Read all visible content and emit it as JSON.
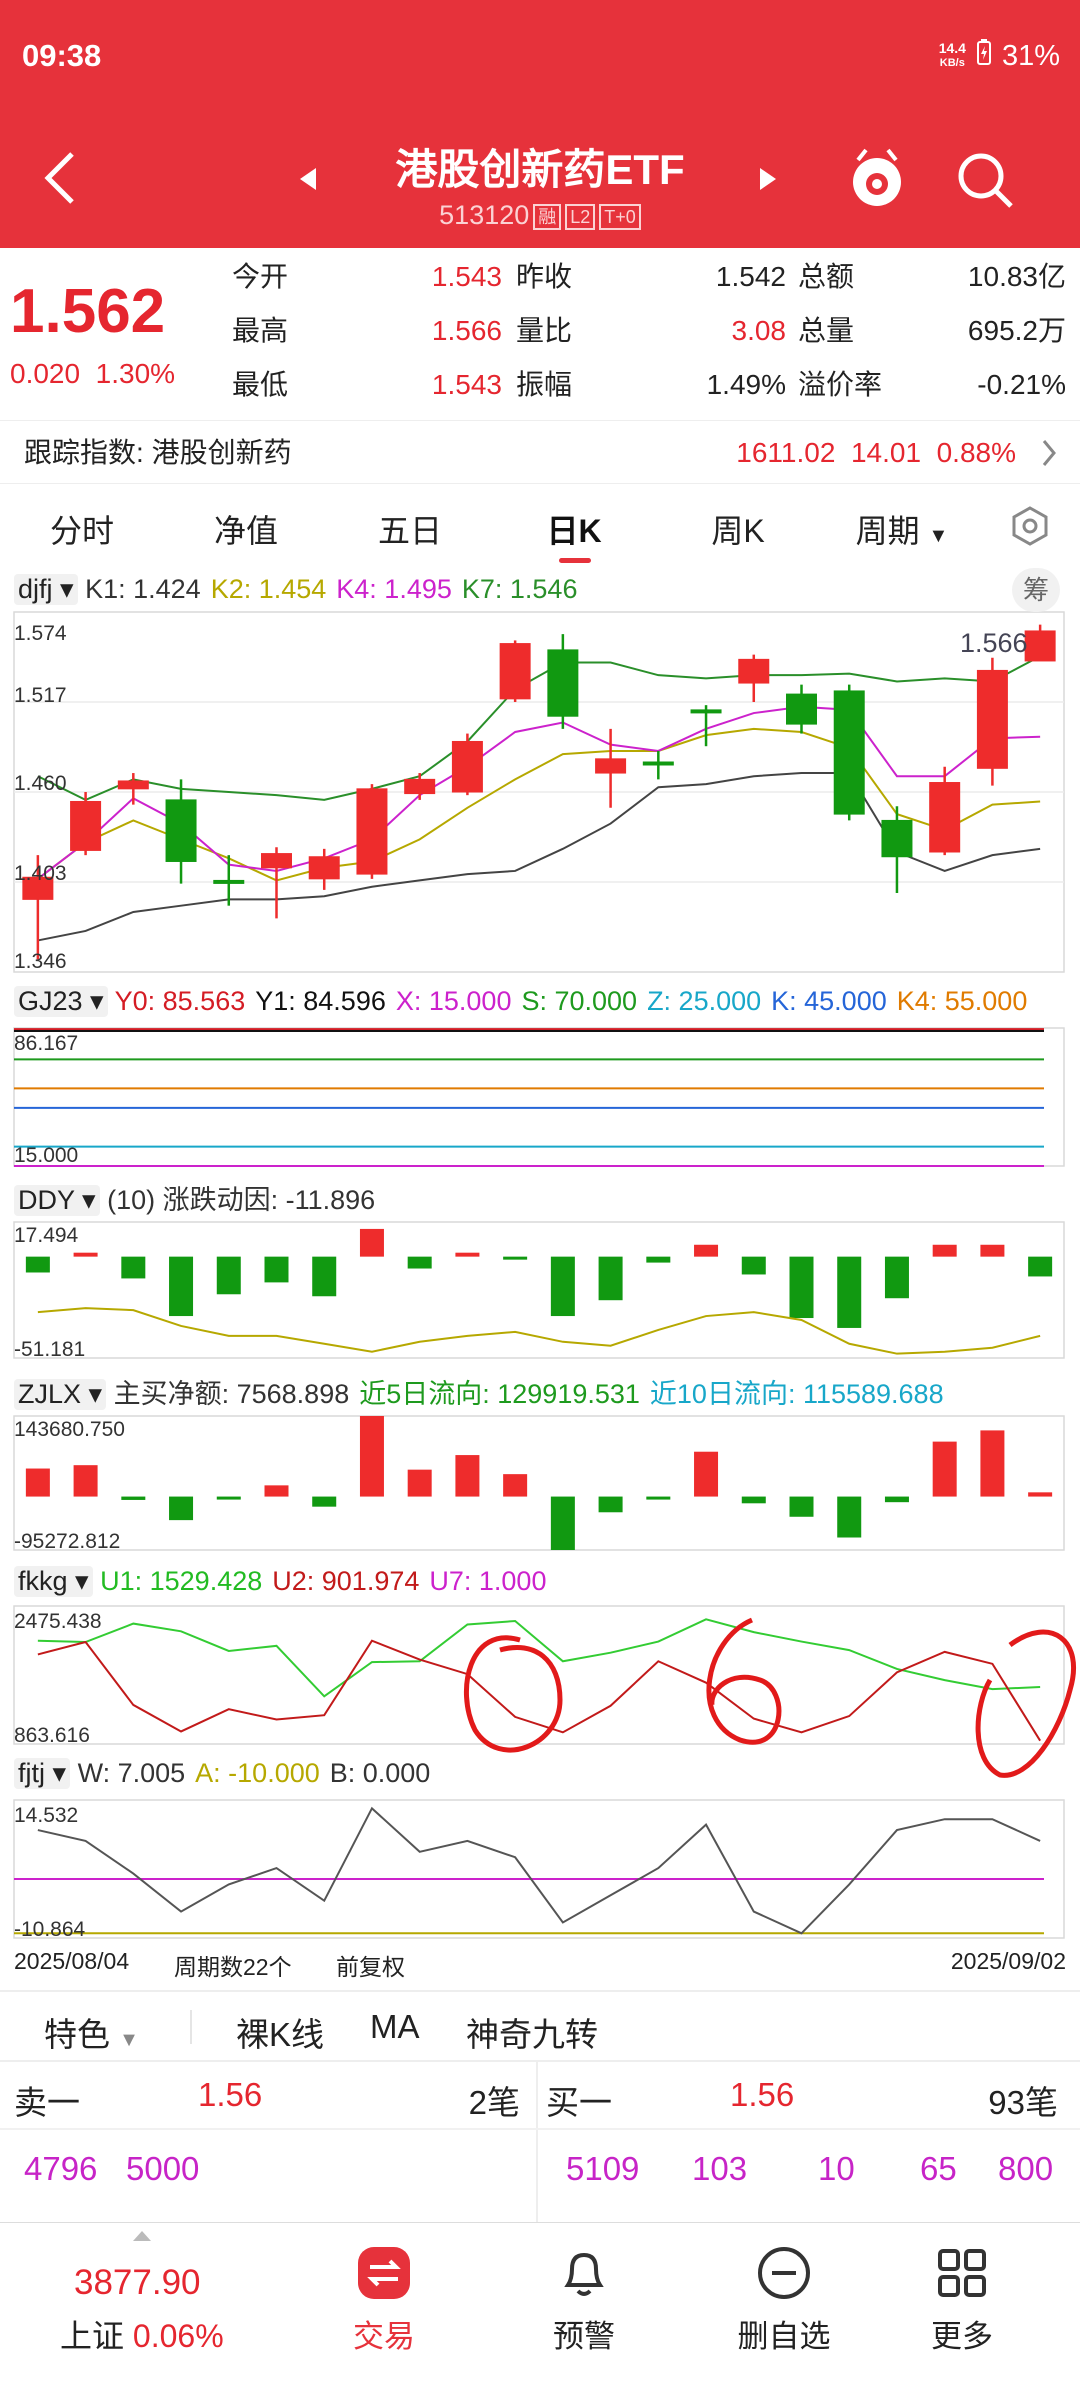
{
  "status": {
    "time": "09:38",
    "net_speed_value": "14.4",
    "net_speed_unit": "KB/s",
    "battery": "31%"
  },
  "header": {
    "title": "港股创新药ETF",
    "code": "513120",
    "tags": [
      "融",
      "L2",
      "T+0"
    ]
  },
  "quote": {
    "price": "1.562",
    "change": "0.020",
    "change_pct": "1.30%",
    "col1": [
      {
        "label": "今开",
        "value": "1.543"
      },
      {
        "label": "最高",
        "value": "1.566"
      },
      {
        "label": "最低",
        "value": "1.543"
      }
    ],
    "col2": [
      {
        "label": "昨收",
        "value": "1.542"
      },
      {
        "label": "量比",
        "value": "3.08"
      },
      {
        "label": "振幅",
        "value": "1.49%"
      }
    ],
    "col3": [
      {
        "label": "总额",
        "value": "10.83亿"
      },
      {
        "label": "总量",
        "value": "695.2万"
      },
      {
        "label": "溢价率",
        "value": "-0.21%"
      }
    ]
  },
  "track": {
    "label": "跟踪指数:",
    "index": "港股创新药",
    "point": "1611.02",
    "chg": "14.01",
    "pct": "0.88%"
  },
  "tabs": [
    "分时",
    "净值",
    "五日",
    "日K",
    "周K",
    "周期"
  ],
  "active_tab": "日K",
  "panels": {
    "djfj": {
      "name": "djfj",
      "vals": [
        {
          "t": "K1: 1.424",
          "c": "#333"
        },
        {
          "t": "K2: 1.454",
          "c": "#b6a800"
        },
        {
          "t": "K4: 1.495",
          "c": "#cc22cc"
        },
        {
          "t": "K7: 1.546",
          "c": "#2a8f2a"
        }
      ],
      "badge": "筹",
      "last_label": "1.566",
      "y_ticks": [
        "1.574",
        "1.517",
        "1.460",
        "1.403",
        "1.346"
      ]
    },
    "gj23": {
      "name": "GJ23",
      "vals": [
        {
          "t": "Y0: 85.563",
          "c": "#d41c24"
        },
        {
          "t": "Y1: 84.596",
          "c": "#111"
        },
        {
          "t": "X: 15.000",
          "c": "#cc22cc"
        },
        {
          "t": "S: 70.000",
          "c": "#1e9a1e"
        },
        {
          "t": "Z: 25.000",
          "c": "#18a7c9"
        },
        {
          "t": "K: 45.000",
          "c": "#2565d8"
        },
        {
          "t": "K4: 55.000",
          "c": "#e07b00"
        }
      ],
      "y_ticks": [
        "86.167",
        "15.000"
      ]
    },
    "ddy": {
      "name": "DDY",
      "vals": [
        {
          "t": "(10) 涨跌动因: -11.896",
          "c": "#333"
        }
      ],
      "y_ticks": [
        "17.494",
        "-51.181"
      ]
    },
    "zjlx": {
      "name": "ZJLX",
      "vals": [
        {
          "t": "主买净额: 7568.898",
          "c": "#333"
        },
        {
          "t": "近5日流向: 129919.531",
          "c": "#1e9a1e"
        },
        {
          "t": "近10日流向: 115589.688",
          "c": "#18a7c9"
        }
      ],
      "y_ticks": [
        "143680.750",
        "-95272.812"
      ]
    },
    "fkkg": {
      "name": "fkkg",
      "vals": [
        {
          "t": "U1: 1529.428",
          "c": "#22bb22"
        },
        {
          "t": "U2: 901.974",
          "c": "#c21a1a"
        },
        {
          "t": "U7: 1.000",
          "c": "#cc22cc"
        }
      ],
      "y_ticks": [
        "2475.438",
        "863.616"
      ]
    },
    "fjtj": {
      "name": "fjtj",
      "vals": [
        {
          "t": "W: 7.005",
          "c": "#333"
        },
        {
          "t": "A: -10.000",
          "c": "#b6a800"
        },
        {
          "t": "B: 0.000",
          "c": "#333"
        }
      ],
      "y_ticks": [
        "14.532",
        "-10.864"
      ]
    }
  },
  "chart_data": {
    "type": "candlestick",
    "dates": {
      "start": "2025/08/04",
      "end": "2025/09/02"
    },
    "period_count": "周期数22个",
    "adjust": "前复权",
    "candles": [
      {
        "o": 1.392,
        "c": 1.406,
        "h": 1.42,
        "l": 1.354
      },
      {
        "o": 1.423,
        "c": 1.454,
        "h": 1.46,
        "l": 1.42
      },
      {
        "o": 1.462,
        "c": 1.467,
        "h": 1.472,
        "l": 1.452
      },
      {
        "o": 1.455,
        "c": 1.416,
        "h": 1.468,
        "l": 1.402
      },
      {
        "o": 1.404,
        "c": 1.403,
        "h": 1.42,
        "l": 1.388
      },
      {
        "o": 1.412,
        "c": 1.421,
        "h": 1.425,
        "l": 1.38
      },
      {
        "o": 1.405,
        "c": 1.419,
        "h": 1.424,
        "l": 1.398
      },
      {
        "o": 1.408,
        "c": 1.462,
        "h": 1.465,
        "l": 1.405
      },
      {
        "o": 1.459,
        "c": 1.468,
        "h": 1.472,
        "l": 1.455
      },
      {
        "o": 1.46,
        "c": 1.492,
        "h": 1.497,
        "l": 1.458
      },
      {
        "o": 1.519,
        "c": 1.554,
        "h": 1.556,
        "l": 1.517
      },
      {
        "o": 1.55,
        "c": 1.508,
        "h": 1.56,
        "l": 1.5
      },
      {
        "o": 1.472,
        "c": 1.481,
        "h": 1.5,
        "l": 1.45
      },
      {
        "o": 1.479,
        "c": 1.478,
        "h": 1.486,
        "l": 1.468
      },
      {
        "o": 1.512,
        "c": 1.511,
        "h": 1.515,
        "l": 1.489
      },
      {
        "o": 1.529,
        "c": 1.544,
        "h": 1.547,
        "l": 1.517
      },
      {
        "o": 1.522,
        "c": 1.503,
        "h": 1.528,
        "l": 1.497
      },
      {
        "o": 1.524,
        "c": 1.446,
        "h": 1.528,
        "l": 1.442
      },
      {
        "o": 1.442,
        "c": 1.419,
        "h": 1.451,
        "l": 1.396
      },
      {
        "o": 1.422,
        "c": 1.466,
        "h": 1.476,
        "l": 1.42
      },
      {
        "o": 1.475,
        "c": 1.537,
        "h": 1.545,
        "l": 1.464
      },
      {
        "o": 1.543,
        "c": 1.562,
        "h": 1.566,
        "l": 1.543
      }
    ],
    "ma_gray": [
      1.366,
      1.372,
      1.384,
      1.388,
      1.392,
      1.392,
      1.394,
      1.4,
      1.404,
      1.408,
      1.41,
      1.424,
      1.44,
      1.463,
      1.465,
      1.47,
      1.472,
      1.472,
      1.422,
      1.41,
      1.42,
      1.424
    ],
    "ma_yellow": [
      1.405,
      1.428,
      1.442,
      1.43,
      1.418,
      1.404,
      1.412,
      1.416,
      1.43,
      1.45,
      1.468,
      1.484,
      1.486,
      1.486,
      1.496,
      1.5,
      1.498,
      1.488,
      1.446,
      1.436,
      1.452,
      1.454
    ],
    "ma_magenta": [
      1.405,
      1.428,
      1.456,
      1.44,
      1.414,
      1.41,
      1.418,
      1.43,
      1.458,
      1.476,
      1.498,
      1.504,
      1.49,
      1.486,
      1.5,
      1.51,
      1.514,
      1.512,
      1.47,
      1.47,
      1.494,
      1.495
    ],
    "ma_green": [
      1.47,
      1.455,
      1.468,
      1.462,
      1.46,
      1.458,
      1.455,
      1.462,
      1.47,
      1.492,
      1.525,
      1.542,
      1.542,
      1.534,
      1.532,
      1.534,
      1.534,
      1.535,
      1.53,
      1.532,
      1.53,
      1.546
    ],
    "ddy_bars": [
      -8,
      2,
      -11,
      -30,
      -19,
      -13,
      -20,
      14,
      -6,
      2,
      -1,
      -30,
      -22,
      -3,
      6,
      -9,
      -31,
      -36,
      -21,
      6,
      6,
      -10
    ],
    "ddy_line": [
      -28,
      -26,
      -27,
      -35,
      -40,
      -40,
      -44,
      -48,
      -43,
      -40,
      -38,
      -43,
      -45,
      -37,
      -30,
      -28,
      -32,
      -44,
      -49,
      -48,
      -46,
      -40
    ],
    "zjlx_bars": [
      50000,
      56000,
      -6000,
      -42000,
      -2000,
      20000,
      -18000,
      143680,
      48000,
      74000,
      40000,
      -95272,
      -28000,
      -3000,
      80000,
      -12000,
      -36000,
      -73000,
      -10000,
      98000,
      118000,
      7568
    ],
    "fkkg_u1": [
      2070,
      2055,
      2270,
      2180,
      1950,
      2010,
      1420,
      1820,
      1830,
      2260,
      2300,
      1830,
      1930,
      2060,
      2320,
      2170,
      2060,
      1960,
      1740,
      1610,
      1505,
      1529
    ],
    "fkkg_u2": [
      1910,
      2055,
      1320,
      1010,
      1270,
      1150,
      1200,
      2070,
      1850,
      1680,
      1180,
      1000,
      1310,
      1830,
      1580,
      1160,
      1000,
      1190,
      1700,
      1940,
      1800,
      902
    ],
    "fjtj_w": [
      9,
      7,
      1,
      -6,
      -1,
      2,
      -4,
      13,
      5,
      7,
      4,
      -8,
      -3,
      2,
      10,
      -6,
      -10,
      -1,
      9,
      11,
      11,
      7
    ],
    "gj23_levels": [
      {
        "v": 85.563,
        "c": "#d41c24"
      },
      {
        "v": 84.596,
        "c": "#111111"
      },
      {
        "v": 70,
        "c": "#1e9a1e"
      },
      {
        "v": 55,
        "c": "#e07b00"
      },
      {
        "v": 45,
        "c": "#2565d8"
      },
      {
        "v": 25,
        "c": "#18a7c9"
      },
      {
        "v": 15,
        "c": "#cc22cc"
      }
    ]
  },
  "options": [
    "特色",
    "裸K线",
    "MA",
    "神奇九转"
  ],
  "book": {
    "sell_label": "卖一",
    "sell_price": "1.56",
    "sell_count": "2笔",
    "buy_label": "买一",
    "buy_price": "1.56",
    "buy_count": "93笔",
    "sell_vols": [
      "4796",
      "5000"
    ],
    "buy_vols": [
      "5109",
      "103",
      "10",
      "65",
      "800"
    ]
  },
  "nav": {
    "index_value": "3877.90",
    "index_name": "上证",
    "index_pct": "0.06%",
    "items": [
      "交易",
      "预警",
      "删自选",
      "更多"
    ]
  }
}
